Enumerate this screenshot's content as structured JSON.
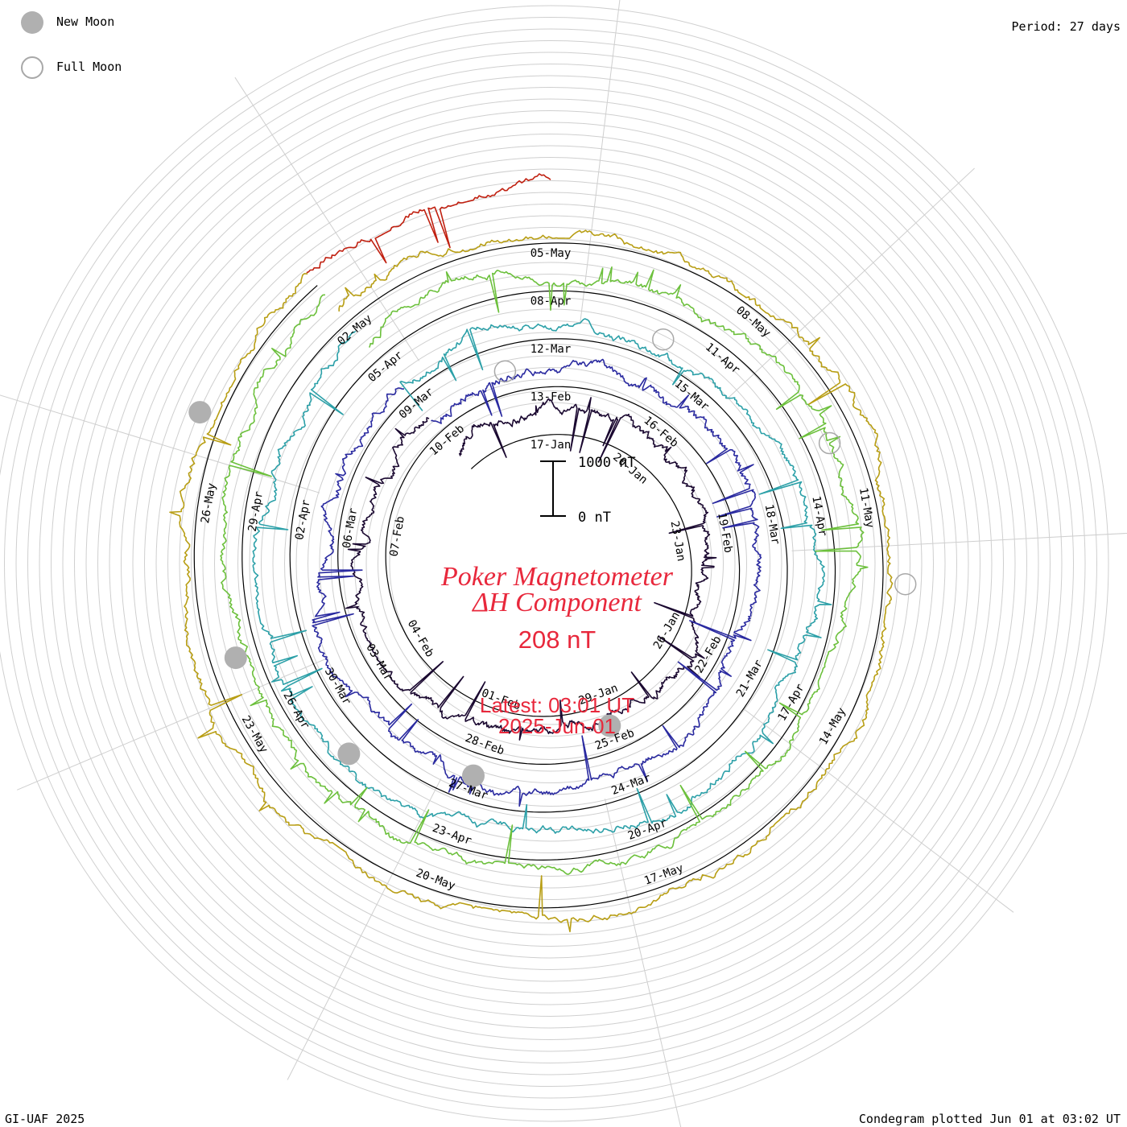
{
  "header": {
    "period_label": "Period: 27 days"
  },
  "legend": [
    {
      "label": "New Moon",
      "kind": "new",
      "color": "#b0b0b0"
    },
    {
      "label": "Full Moon",
      "kind": "full",
      "color": "#a8a8a8"
    }
  ],
  "footer": {
    "credit": "GI-UAF 2025",
    "plotted": "Condegram plotted Jun 01 at 03:02 UT"
  },
  "center": {
    "title_line1": "Poker Magnetometer",
    "title_line2": "ΔH Component",
    "value": "208 nT",
    "latest": "Latest: 03:01 UT",
    "date": "2025-Jun-01",
    "text_color": "#e8283c"
  },
  "chart_data": {
    "type": "line",
    "title": "Poker Magnetometer ΔH Component",
    "subtitle": "208 nT",
    "period_days": 27,
    "scale_bar": {
      "top_label": "1000 nT",
      "bottom_label": "0 nT",
      "top_value_nT": 1000,
      "bottom_value_nT": 0
    },
    "series": [
      {
        "name": "17-Jan",
        "color": "#1a0830",
        "start": "2025-01-14",
        "end": "2025-02-10"
      },
      {
        "name": "13-Feb",
        "color": "#2a2aa0",
        "start": "2025-02-10",
        "end": "2025-03-09"
      },
      {
        "name": "12-Mar",
        "color": "#2ca0a8",
        "start": "2025-03-09",
        "end": "2025-04-05"
      },
      {
        "name": "08-Apr",
        "color": "#6cc03c",
        "start": "2025-04-05",
        "end": "2025-05-02"
      },
      {
        "name": "05-May",
        "color": "#b89e14",
        "start": "2025-05-02",
        "end": "2025-05-29"
      },
      {
        "name": "latest",
        "color": "#c02010",
        "start": "2025-05-29",
        "end": "2025-06-01"
      }
    ],
    "date_labels": [
      [
        "17-Jan",
        "20-Jan",
        "23-Jan",
        "26-Jan",
        "29-Jan",
        "01-Feb",
        "04-Feb",
        "07-Feb",
        "10-Feb"
      ],
      [
        "13-Feb",
        "16-Feb",
        "19-Feb",
        "22-Feb",
        "25-Feb",
        "28-Feb",
        "03-Mar",
        "06-Mar",
        "09-Mar"
      ],
      [
        "12-Mar",
        "15-Mar",
        "18-Mar",
        "21-Mar",
        "24-Mar",
        "27-Mar",
        "30-Mar",
        "02-Apr",
        "05-Apr"
      ],
      [
        "08-Apr",
        "11-Apr",
        "14-Apr",
        "17-Apr",
        "20-Apr",
        "23-Apr",
        "26-Apr",
        "29-Apr",
        "02-May"
      ],
      [
        "05-May",
        "08-May",
        "11-May",
        "14-May",
        "17-May",
        "20-May",
        "23-May",
        "26-May"
      ]
    ],
    "new_moons": [
      "2025-01-29",
      "2025-02-28",
      "2025-03-29",
      "2025-04-27",
      "2025-05-27"
    ],
    "full_moons": [
      "2025-02-12",
      "2025-03-14",
      "2025-04-13",
      "2025-05-12"
    ],
    "grid": true
  }
}
